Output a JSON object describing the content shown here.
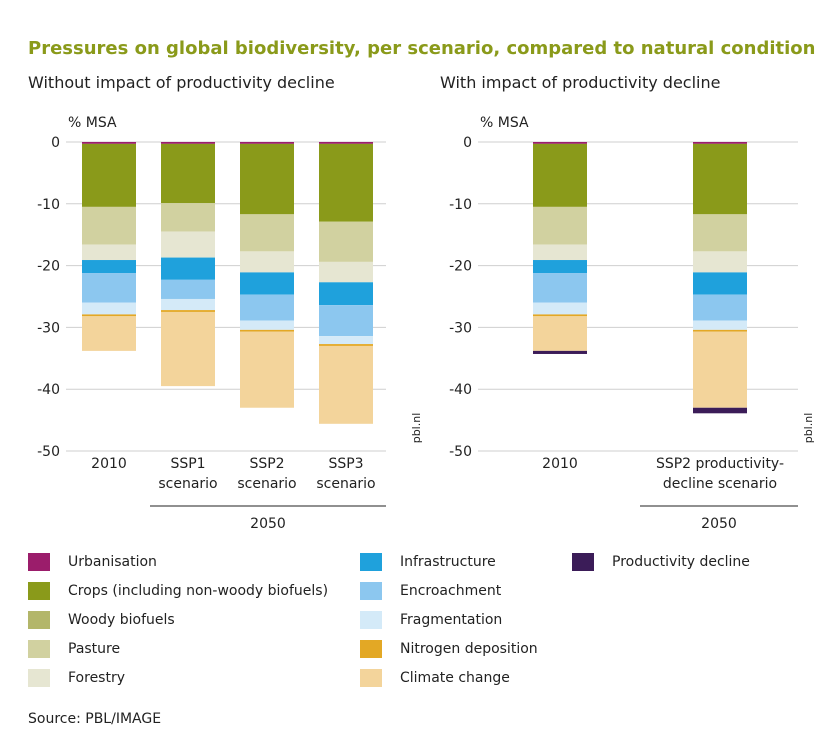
{
  "title": "Pressures on global biodiversity, per scenario, compared to natural condition",
  "source": "Source: PBL/IMAGE",
  "watermark": "pbl.nl",
  "legend": [
    {
      "name": "Urbanisation",
      "color": "#9b1d6b"
    },
    {
      "name": "Crops (including non-woody biofuels)",
      "color": "#8a9a1a"
    },
    {
      "name": "Woody biofuels",
      "color": "#b3b66a"
    },
    {
      "name": "Pasture",
      "color": "#d1d1a0"
    },
    {
      "name": "Forestry",
      "color": "#e6e6d2"
    },
    {
      "name": "Infrastructure",
      "color": "#1fa1dc"
    },
    {
      "name": "Encroachment",
      "color": "#8cc7ef"
    },
    {
      "name": "Fragmentation",
      "color": "#d4eaf8"
    },
    {
      "name": "Nitrogen deposition",
      "color": "#e3a825"
    },
    {
      "name": "Climate change",
      "color": "#f3d49b"
    },
    {
      "name": "Productivity decline",
      "color": "#3b1c58"
    }
  ],
  "chart_data": [
    {
      "type": "bar",
      "stacked": true,
      "subtitle": "Without impact of productivity decline",
      "ylabel": "% MSA",
      "ylim": [
        -50,
        0
      ],
      "yticks": [
        0,
        -10,
        -20,
        -30,
        -40,
        -50
      ],
      "categories": [
        "2010",
        "SSP1\nscenario",
        "SSP2\nscenario",
        "SSP3\nscenario"
      ],
      "group_label": "2050",
      "grid": true,
      "series": [
        {
          "name": "Urbanisation",
          "values": [
            -0.3,
            -0.3,
            -0.3,
            -0.3
          ]
        },
        {
          "name": "Crops (including non-woody biofuels)",
          "values": [
            -10.2,
            -9.6,
            -11.4,
            -12.6
          ]
        },
        {
          "name": "Woody biofuels",
          "values": [
            0,
            0,
            0,
            0
          ]
        },
        {
          "name": "Pasture",
          "values": [
            -6.1,
            -4.6,
            -6.0,
            -6.5
          ]
        },
        {
          "name": "Forestry",
          "values": [
            -2.5,
            -4.2,
            -3.4,
            -3.3
          ]
        },
        {
          "name": "Infrastructure",
          "values": [
            -2.1,
            -3.6,
            -3.6,
            -3.7
          ]
        },
        {
          "name": "Encroachment",
          "values": [
            -4.8,
            -3.1,
            -4.2,
            -5.0
          ]
        },
        {
          "name": "Fragmentation",
          "values": [
            -1.9,
            -1.8,
            -1.5,
            -1.3
          ]
        },
        {
          "name": "Nitrogen deposition",
          "values": [
            -0.3,
            -0.3,
            -0.3,
            -0.3
          ]
        },
        {
          "name": "Climate change",
          "values": [
            -5.6,
            -12.0,
            -12.3,
            -12.6
          ]
        },
        {
          "name": "Productivity decline",
          "values": [
            0,
            0,
            0,
            0
          ]
        }
      ]
    },
    {
      "type": "bar",
      "stacked": true,
      "subtitle": "With impact of productivity decline",
      "ylabel": "% MSA",
      "ylim": [
        -50,
        0
      ],
      "yticks": [
        0,
        -10,
        -20,
        -30,
        -40,
        -50
      ],
      "categories": [
        "2010",
        "SSP2 productivity-\ndecline scenario"
      ],
      "group_label": "2050",
      "grid": true,
      "series": [
        {
          "name": "Urbanisation",
          "values": [
            -0.3,
            -0.3
          ]
        },
        {
          "name": "Crops (including non-woody biofuels)",
          "values": [
            -10.2,
            -11.4
          ]
        },
        {
          "name": "Woody biofuels",
          "values": [
            0,
            0
          ]
        },
        {
          "name": "Pasture",
          "values": [
            -6.1,
            -6.0
          ]
        },
        {
          "name": "Forestry",
          "values": [
            -2.5,
            -3.4
          ]
        },
        {
          "name": "Infrastructure",
          "values": [
            -2.1,
            -3.6
          ]
        },
        {
          "name": "Encroachment",
          "values": [
            -4.8,
            -4.2
          ]
        },
        {
          "name": "Fragmentation",
          "values": [
            -1.9,
            -1.5
          ]
        },
        {
          "name": "Nitrogen deposition",
          "values": [
            -0.3,
            -0.3
          ]
        },
        {
          "name": "Climate change",
          "values": [
            -5.6,
            -12.3
          ]
        },
        {
          "name": "Productivity decline",
          "values": [
            -0.5,
            -0.9
          ]
        }
      ]
    }
  ]
}
